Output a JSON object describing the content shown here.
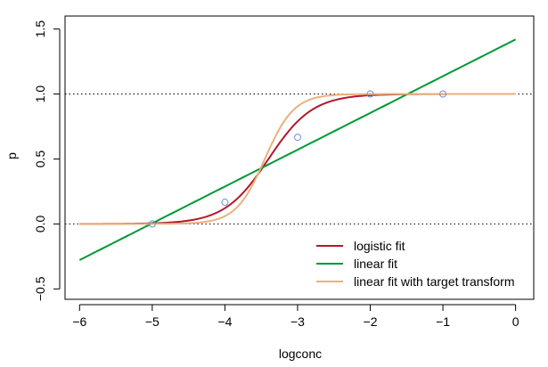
{
  "chart_data": {
    "type": "line",
    "xlabel": "logconc",
    "ylabel": "p",
    "xlim": [
      -6.2,
      0.25
    ],
    "ylim": [
      -0.58,
      1.6
    ],
    "x_ticks": [
      -6,
      -5,
      -4,
      -3,
      -2,
      -1,
      0
    ],
    "y_ticks": [
      -0.5,
      0.0,
      0.5,
      1.0,
      1.5
    ],
    "x_tick_labels": [
      "−6",
      "−5",
      "−4",
      "−3",
      "−2",
      "−1",
      "0"
    ],
    "y_tick_labels": [
      "−0.5",
      "0.0",
      "0.5",
      "1.0",
      "1.5"
    ],
    "reference_lines": [
      {
        "y": 0,
        "style": "dotted",
        "color": "#000000"
      },
      {
        "y": 1,
        "style": "dotted",
        "color": "#000000"
      }
    ],
    "points": {
      "x": [
        -5,
        -4,
        -3,
        -2,
        -1
      ],
      "y": [
        0.0,
        0.167,
        0.667,
        1.0,
        1.0
      ],
      "color": "#6a8fd1"
    },
    "series": [
      {
        "name": "logistic fit",
        "color": "#b2182b",
        "kind": "logistic",
        "x0": -3.4,
        "slope": 3.3,
        "xrange": [
          -6,
          0
        ]
      },
      {
        "name": "linear fit",
        "color": "#009933",
        "kind": "linear",
        "intercept": 1.42,
        "slope": 0.283,
        "xrange": [
          -6,
          0
        ]
      },
      {
        "name": "linear fit with target transform",
        "color": "#e8b27c",
        "kind": "logistic",
        "x0": -3.45,
        "slope": 5.0,
        "xrange": [
          -6,
          0
        ]
      }
    ],
    "legend_position": "bottom-right",
    "grid": false
  }
}
